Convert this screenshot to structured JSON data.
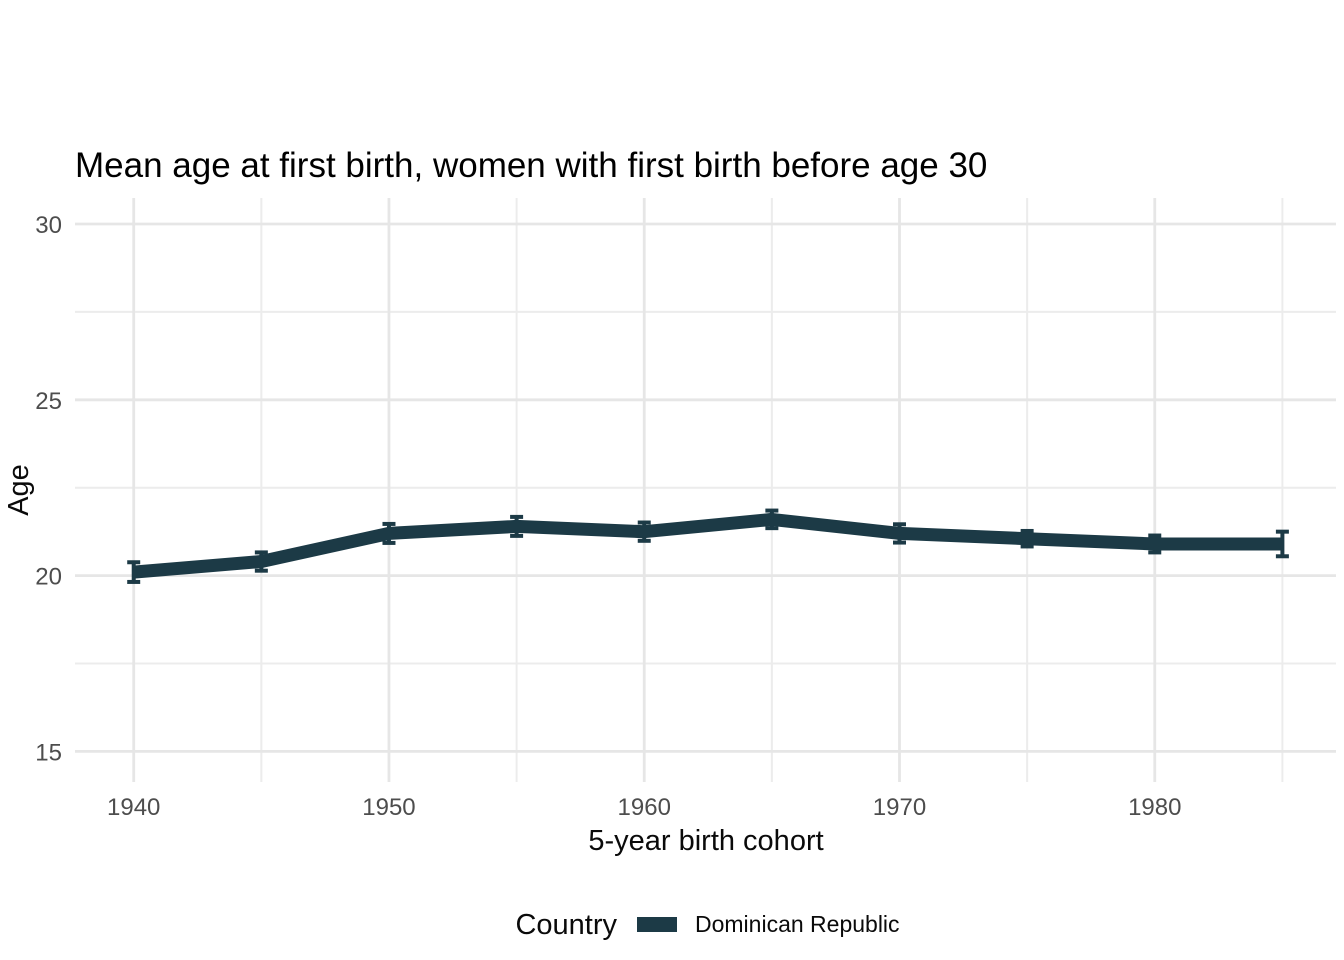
{
  "chart_data": {
    "type": "line",
    "title": "Mean age at first birth, women with first birth before age 30",
    "xlabel": "5-year birth cohort",
    "ylabel": "Age",
    "x": [
      1940,
      1945,
      1950,
      1955,
      1960,
      1965,
      1970,
      1975,
      1980,
      1985
    ],
    "series": [
      {
        "name": "Dominican Republic",
        "values": [
          20.1,
          20.4,
          21.2,
          21.4,
          21.25,
          21.6,
          21.2,
          21.05,
          20.9,
          20.9
        ],
        "errors": [
          0.28,
          0.26,
          0.27,
          0.27,
          0.26,
          0.25,
          0.26,
          0.22,
          0.24,
          0.35
        ],
        "color": "#1c3a46"
      }
    ],
    "x_ticks": [
      1940,
      1950,
      1960,
      1970,
      1980
    ],
    "x_minor_ticks": [
      1945,
      1955,
      1965,
      1975,
      1985
    ],
    "y_ticks": [
      15,
      20,
      25,
      30
    ],
    "y_minor_ticks": [
      17.5,
      22.5,
      27.5
    ],
    "xlim": [
      1937.7,
      1987.1
    ],
    "ylim": [
      14.13,
      30.74
    ],
    "grid": "major+minor",
    "axis_lines": "none",
    "error_bars": true,
    "legend_position": "bottom"
  },
  "legend": {
    "title": "Country",
    "items": [
      {
        "label": "Dominican Republic",
        "color": "#1c3a46"
      }
    ]
  },
  "colors": {
    "series": "#1c3a46",
    "grid_major": "#e6e6e6",
    "grid_minor": "#ececec",
    "tick_text": "#4d4d4d",
    "text": "#000000",
    "background": "#ffffff"
  }
}
